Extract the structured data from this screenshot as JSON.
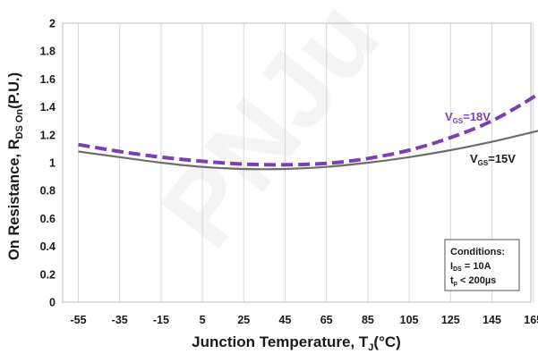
{
  "chart_data": {
    "type": "line",
    "xlabel_main": "Junction Temperature, T",
    "xlabel_sub": "J",
    "xlabel_unit": "(°C)",
    "ylabel_main": "On Resistance, R",
    "ylabel_sub": "DS On",
    "ylabel_unit": "(P.U.)",
    "xlim": [
      -55,
      175
    ],
    "ylim": [
      0,
      2
    ],
    "xticks": [
      -55,
      -35,
      -15,
      5,
      25,
      45,
      65,
      85,
      105,
      125,
      145,
      165
    ],
    "yticks": [
      0,
      0.2,
      0.4,
      0.6,
      0.8,
      1,
      1.2,
      1.4,
      1.6,
      1.8,
      2
    ],
    "grid": "vertical",
    "series": [
      {
        "label_main": "V",
        "label_sub": "GS",
        "label_rest": "=15V",
        "color": "#6d6d6d",
        "style": "solid",
        "x": [
          -55,
          -35,
          -15,
          5,
          25,
          45,
          65,
          85,
          105,
          125,
          145,
          165,
          175
        ],
        "y": [
          1.08,
          1.04,
          1.0,
          0.97,
          0.955,
          0.955,
          0.97,
          1.0,
          1.04,
          1.09,
          1.15,
          1.22,
          1.26
        ]
      },
      {
        "label_main": "V",
        "label_sub": "GS",
        "label_rest": "=18V",
        "color": "#7a3fb0",
        "style": "dashed",
        "x": [
          -55,
          -35,
          -15,
          5,
          25,
          45,
          65,
          85,
          105,
          125,
          145,
          165,
          172
        ],
        "y": [
          1.13,
          1.08,
          1.04,
          1.01,
          0.99,
          0.985,
          0.995,
          1.03,
          1.09,
          1.18,
          1.3,
          1.47,
          1.56
        ]
      }
    ],
    "conditions": {
      "title": "Conditions:",
      "line1_main": "I",
      "line1_sub": "DS",
      "line1_rest": " = 10A",
      "line2_main": "t",
      "line2_sub": "p",
      "line2_rest": " < 200µs"
    },
    "watermark": "PNJu"
  }
}
